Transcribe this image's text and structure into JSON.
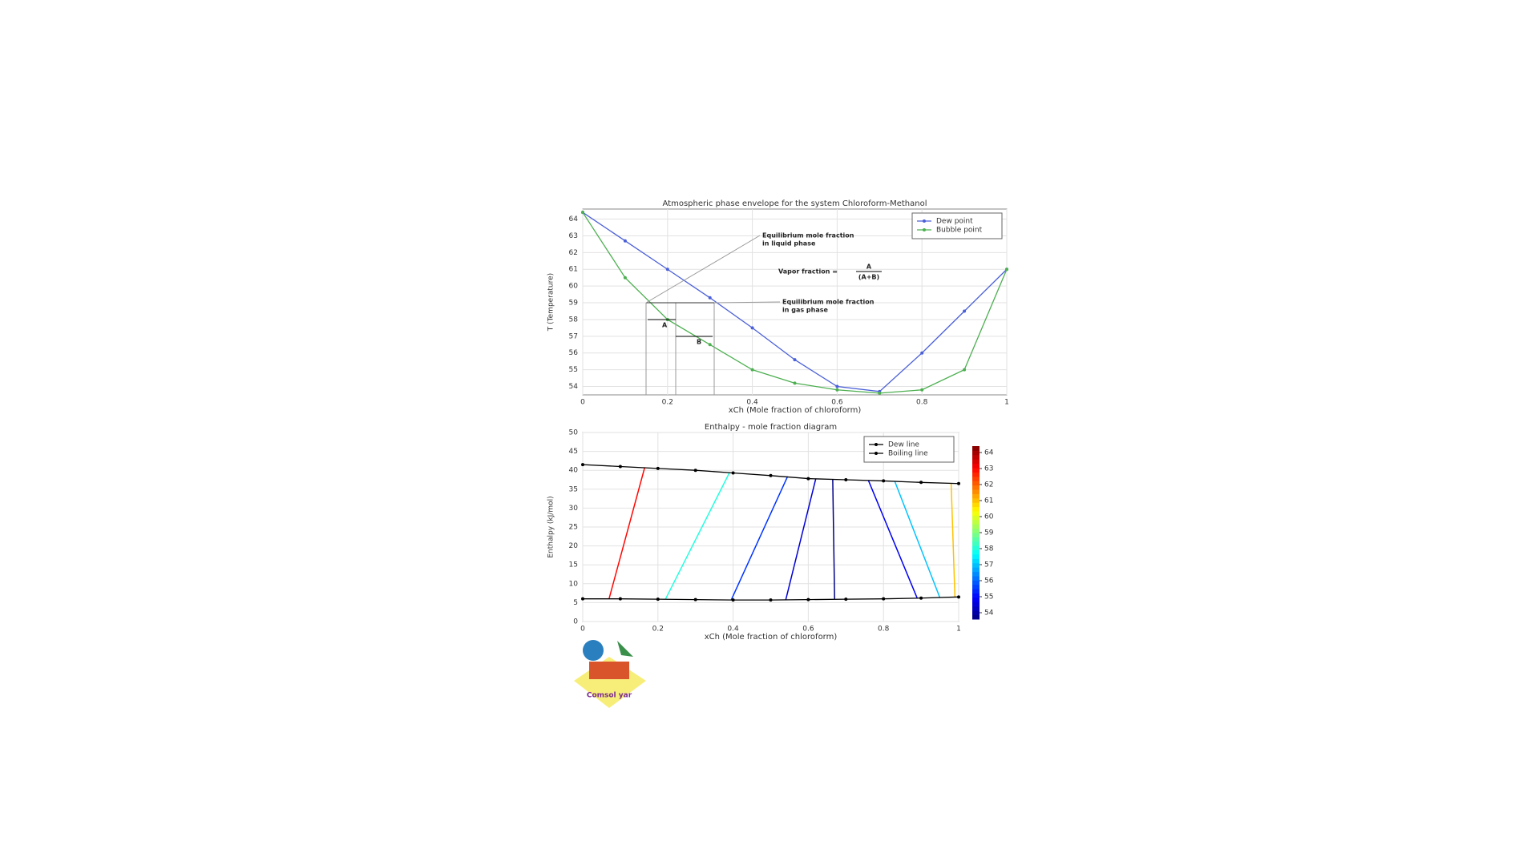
{
  "chart_data": [
    {
      "type": "line",
      "title": "Atmospheric phase envelope for the system Chloroform-Methanol",
      "x_label": "xCh (Mole fraction of chloroform)",
      "y_label": "T (Temperature)",
      "x": [
        0,
        0.1,
        0.2,
        0.3,
        0.4,
        0.5,
        0.6,
        0.7,
        0.8,
        0.9,
        1
      ],
      "series": [
        {
          "name": "Dew point",
          "color": "#4a5fd8",
          "values": [
            64.4,
            62.7,
            61.0,
            59.3,
            57.5,
            55.6,
            54.0,
            53.7,
            56.0,
            58.5,
            61.0
          ]
        },
        {
          "name": "Bubble point",
          "color": "#4caf50",
          "values": [
            64.4,
            60.5,
            58.0,
            56.5,
            55.0,
            54.2,
            53.8,
            53.6,
            53.8,
            55.0,
            61.0
          ]
        }
      ],
      "xlim": [
        0,
        1
      ],
      "xticks": [
        0,
        0.2,
        0.4,
        0.6,
        0.8,
        1
      ],
      "ylim": [
        53.5,
        64.6
      ],
      "yticks": [
        54,
        55,
        56,
        57,
        58,
        59,
        60,
        61,
        62,
        63,
        64
      ],
      "grid": true,
      "legend": "upper right",
      "annotations": [
        "Equilibrium mole fraction",
        "in liquid phase",
        "Vapor fraction = ",
        "A",
        "(A+B)",
        "Equilibrium mole fraction",
        "in gas phase",
        "A",
        "B"
      ]
    },
    {
      "type": "line",
      "title": "Enthalpy - mole fraction diagram",
      "x_label": "xCh (Mole fraction of chloroform)",
      "y_label": "Enthalpy (kJ/mol)",
      "x": [
        0,
        0.1,
        0.2,
        0.3,
        0.4,
        0.5,
        0.6,
        0.7,
        0.8,
        0.9,
        1
      ],
      "series": [
        {
          "name": "Dew line",
          "color": "#000000",
          "values": [
            41.5,
            41,
            40.5,
            40,
            39.3,
            38.6,
            37.8,
            37.5,
            37.2,
            36.8,
            36.5
          ]
        },
        {
          "name": "Boiling line",
          "color": "#000000",
          "values": [
            6,
            6,
            5.9,
            5.8,
            5.7,
            5.7,
            5.8,
            5.9,
            6.0,
            6.2,
            6.5
          ]
        }
      ],
      "tie_lines": [
        {
          "x": [
            0.07,
            0.165
          ],
          "enthalpy": [
            6,
            40.8
          ],
          "temperature": 63
        },
        {
          "x": [
            0.22,
            0.39
          ],
          "enthalpy": [
            5.9,
            39.3
          ],
          "temperature": 58
        },
        {
          "x": [
            0.395,
            0.545
          ],
          "enthalpy": [
            5.7,
            38.4
          ],
          "temperature": 55.5
        },
        {
          "x": [
            0.54,
            0.62
          ],
          "enthalpy": [
            5.7,
            37.8
          ],
          "temperature": 54.5
        },
        {
          "x": [
            0.67,
            0.665
          ],
          "enthalpy": [
            5.9,
            37.6
          ],
          "temperature": 53.7
        },
        {
          "x": [
            0.89,
            0.76
          ],
          "enthalpy": [
            6.1,
            37.3
          ],
          "temperature": 54.8
        },
        {
          "x": [
            0.95,
            0.83
          ],
          "enthalpy": [
            6.3,
            37.1
          ],
          "temperature": 57
        },
        {
          "x": [
            0.99,
            0.98
          ],
          "enthalpy": [
            6.5,
            36.6
          ],
          "temperature": 61
        }
      ],
      "xlim": [
        0,
        1
      ],
      "xticks": [
        0,
        0.2,
        0.4,
        0.6,
        0.8,
        1
      ],
      "ylim": [
        0,
        50
      ],
      "yticks": [
        0,
        5,
        10,
        15,
        20,
        25,
        30,
        35,
        40,
        45,
        50
      ],
      "grid": true,
      "legend": "upper right",
      "clim": [
        53.6,
        64.4
      ],
      "cticks": [
        54,
        55,
        56,
        57,
        58,
        59,
        60,
        61,
        62,
        63,
        64
      ]
    }
  ],
  "logo": {
    "text": "Comsol yar"
  }
}
